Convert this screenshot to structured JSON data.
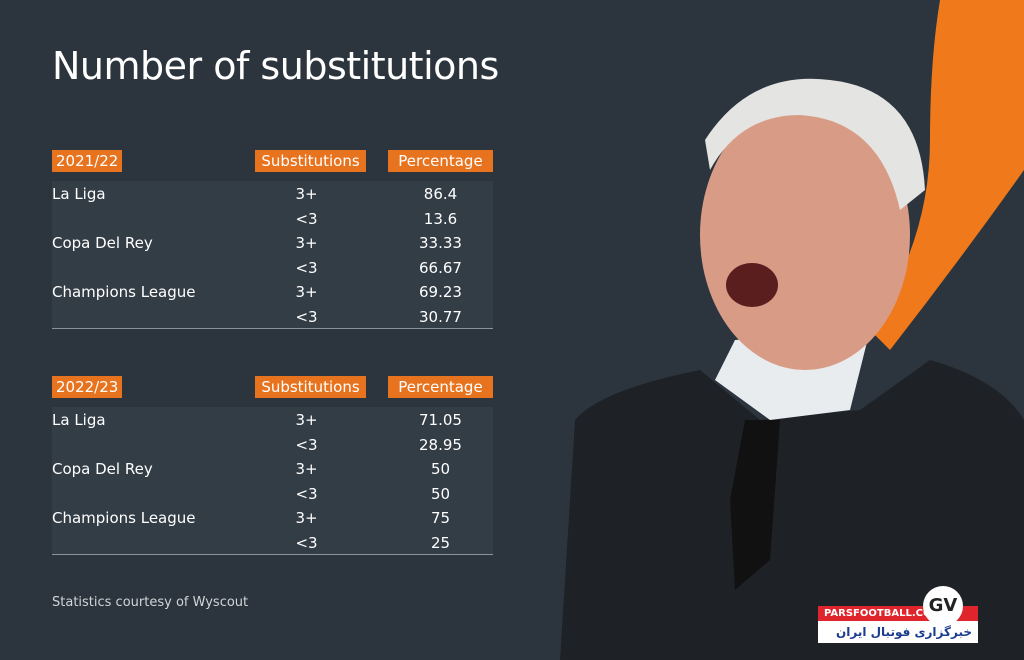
{
  "title": "Number of substitutions",
  "tables": [
    {
      "season": "2021/22",
      "headers": [
        "Substitutions",
        "Percentage"
      ],
      "groups": [
        {
          "competition": "La Liga",
          "rows": [
            [
              "3+",
              "86.4"
            ],
            [
              "<3",
              "13.6"
            ]
          ]
        },
        {
          "competition": "Copa Del Rey",
          "rows": [
            [
              "3+",
              "33.33"
            ],
            [
              "<3",
              "66.67"
            ]
          ]
        },
        {
          "competition": "Champions League",
          "rows": [
            [
              "3+",
              "69.23"
            ],
            [
              "<3",
              "30.77"
            ]
          ]
        }
      ]
    },
    {
      "season": "2022/23",
      "headers": [
        "Substitutions",
        "Percentage"
      ],
      "groups": [
        {
          "competition": "La Liga",
          "rows": [
            [
              "3+",
              "71.05"
            ],
            [
              "<3",
              "28.95"
            ]
          ]
        },
        {
          "competition": "Copa Del Rey",
          "rows": [
            [
              "3+",
              "50"
            ],
            [
              "<3",
              "50"
            ]
          ]
        },
        {
          "competition": "Champions League",
          "rows": [
            [
              "3+",
              "75"
            ],
            [
              "<3",
              "25"
            ]
          ]
        }
      ]
    }
  ],
  "footer": "Statistics courtesy of Wyscout",
  "watermark": {
    "site": "PARSFOOTBALL.COM",
    "tagline": "خبرگزاری فوتبال ایران",
    "logo": "GV"
  }
}
